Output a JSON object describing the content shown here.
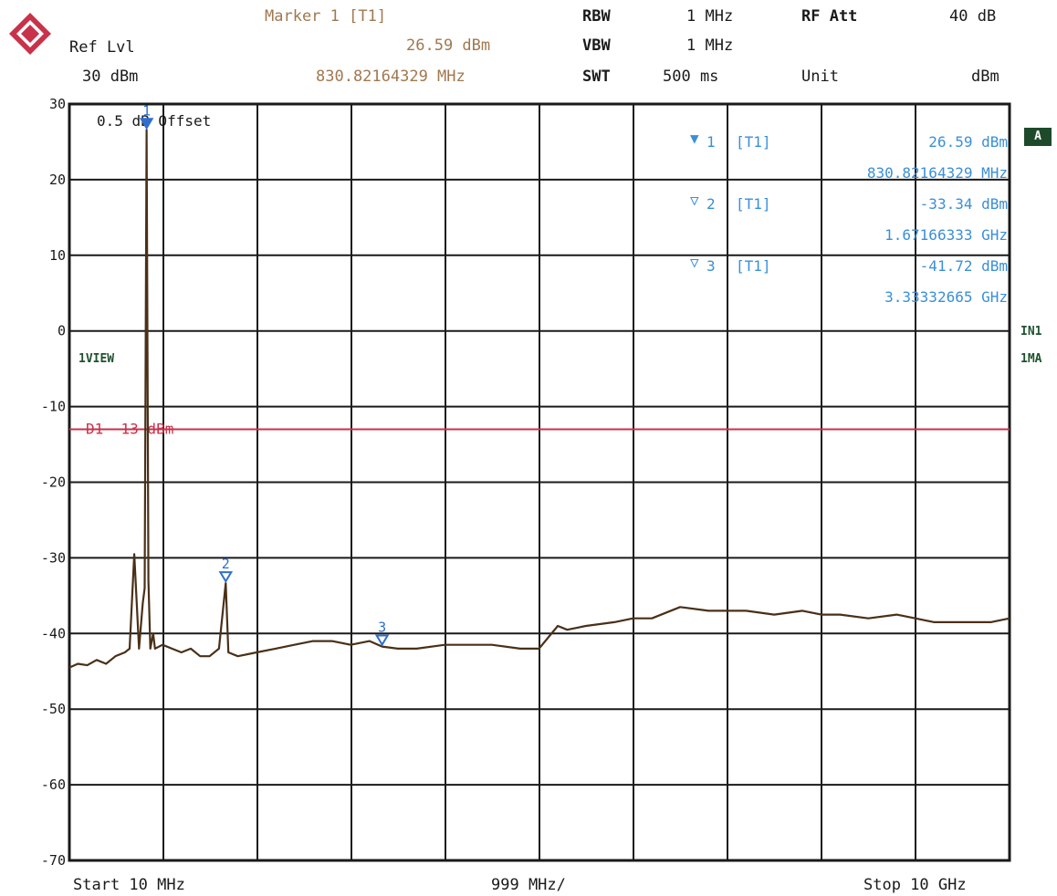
{
  "header": {
    "marker_title": "Marker 1 [T1]",
    "marker_level": "26.59 dBm",
    "marker_freq": "830.82164329 MHz",
    "ref_label": "Ref Lvl",
    "ref_value": "30 dBm",
    "rbw_label": "RBW",
    "rbw_value": "1 MHz",
    "vbw_label": "VBW",
    "vbw_value": "1 MHz",
    "swt_label": "SWT",
    "swt_value": "500 ms",
    "att_label": "RF Att",
    "att_value": "40 dB",
    "unit_label": "Unit",
    "unit_value": "dBm"
  },
  "side": {
    "badge": "A",
    "in1": "IN1",
    "ma": "1MA",
    "view": "1VIEW"
  },
  "marker_table": [
    {
      "label": "1",
      "trace": "[T1]",
      "level": "26.59 dBm",
      "freq": "830.82164329 MHz"
    },
    {
      "label": "2",
      "trace": "[T1]",
      "level": "-33.34 dBm",
      "freq": "1.67166333 GHz"
    },
    {
      "label": "3",
      "trace": "[T1]",
      "level": "-41.72 dBm",
      "freq": "3.33332665 GHz"
    }
  ],
  "footer": {
    "start": "Start 10 MHz",
    "span_per_div": "999 MHz/",
    "stop": "Stop 10 GHz"
  },
  "colors": {
    "trace": "#4a3018",
    "grid": "#1a1a1a",
    "display_line": "#c8324a",
    "marker": "#2f6ecf",
    "header_brown": "#a0784f"
  },
  "chart_data": {
    "type": "line",
    "xlabel": "",
    "ylabel": "",
    "xlim_mhz": [
      10,
      10000
    ],
    "ylim": [
      -70,
      30
    ],
    "x_divisions": 10,
    "y_ticks": [
      30,
      20,
      10,
      0,
      -10,
      -20,
      -30,
      -40,
      -50,
      -60,
      -70
    ],
    "grid": true,
    "offset_note": "0.5 dB Offset",
    "display_line": {
      "label": "D1 -13 dBm",
      "value": -13
    },
    "markers": [
      {
        "label": "1",
        "x_mhz": 830.82,
        "y": 26.59,
        "filled": true
      },
      {
        "label": "2",
        "x_mhz": 1671.66,
        "y": -33.34,
        "filled": false
      },
      {
        "label": "3",
        "x_mhz": 3333.33,
        "y": -41.72,
        "filled": false
      }
    ],
    "series": [
      {
        "x_mhz": [
          10,
          100,
          200,
          300,
          400,
          500,
          600,
          650,
          700,
          750,
          790,
          810,
          830.82,
          850,
          870,
          900,
          920,
          1000,
          1100,
          1200,
          1300,
          1400,
          1500,
          1600,
          1671.66,
          1700,
          1800,
          2000,
          2200,
          2400,
          2600,
          2800,
          3000,
          3200,
          3333.33,
          3500,
          3700,
          4000,
          4200,
          4500,
          4800,
          5000,
          5200,
          5300,
          5500,
          5800,
          6000,
          6200,
          6500,
          6800,
          7000,
          7200,
          7500,
          7800,
          8000,
          8200,
          8500,
          8800,
          9000,
          9200,
          9500,
          9800,
          10000
        ],
        "y": [
          -44.5,
          -44.0,
          -44.2,
          -43.5,
          -44.0,
          -43.0,
          -42.5,
          -42.0,
          -29.5,
          -42.0,
          -36.0,
          -34.0,
          26.59,
          -33.0,
          -42.0,
          -40.0,
          -42.0,
          -41.5,
          -42.0,
          -42.5,
          -42.0,
          -43.0,
          -43.0,
          -42.0,
          -33.34,
          -42.5,
          -43.0,
          -42.5,
          -42.0,
          -41.5,
          -41.0,
          -41.0,
          -41.5,
          -41.0,
          -41.72,
          -42.0,
          -42.0,
          -41.5,
          -41.5,
          -41.5,
          -42.0,
          -42.0,
          -39.0,
          -39.5,
          -39.0,
          -38.5,
          -38.0,
          -38.0,
          -36.5,
          -37.0,
          -37.0,
          -37.0,
          -37.5,
          -37.0,
          -37.5,
          -37.5,
          -38.0,
          -37.5,
          -38.0,
          -38.5,
          -38.5,
          -38.5,
          -38.0
        ]
      }
    ]
  }
}
